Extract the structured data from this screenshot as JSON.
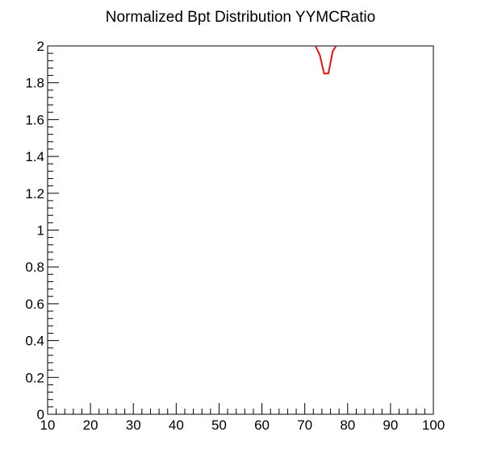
{
  "chart_data": {
    "type": "line",
    "title": "Normalized Bpt Distribution YYMCRatio",
    "xlabel": "",
    "ylabel": "",
    "xlim": [
      10,
      100
    ],
    "ylim": [
      0,
      2
    ],
    "x_ticks": [
      10,
      20,
      30,
      40,
      50,
      60,
      70,
      80,
      90,
      100
    ],
    "y_ticks": [
      0,
      0.2,
      0.4,
      0.6,
      0.8,
      1,
      1.2,
      1.4,
      1.6,
      1.8,
      2
    ],
    "x_tick_labels": [
      "10",
      "20",
      "30",
      "40",
      "50",
      "60",
      "70",
      "80",
      "90",
      "100"
    ],
    "y_tick_labels": [
      "0",
      "0.2",
      "0.4",
      "0.6",
      "0.8",
      "1",
      "1.2",
      "1.4",
      "1.6",
      "1.8",
      "2"
    ],
    "grid": false,
    "legend": "none",
    "series": [
      {
        "color": "#ee1111",
        "x": [
          72.5,
          73.5,
          74.5,
          75.5,
          76.5,
          77.3
        ],
        "y": [
          2.0,
          1.95,
          1.85,
          1.85,
          1.97,
          2.0
        ]
      }
    ]
  }
}
